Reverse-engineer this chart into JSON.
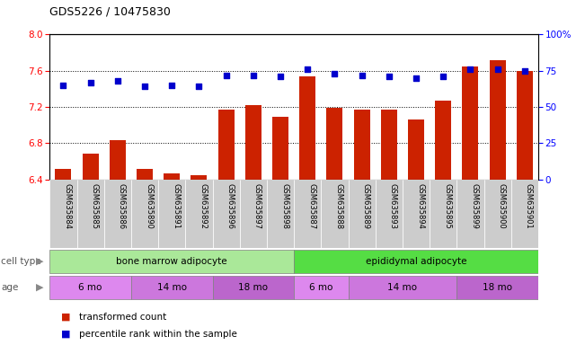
{
  "title": "GDS5226 / 10475830",
  "samples": [
    "GSM635884",
    "GSM635885",
    "GSM635886",
    "GSM635890",
    "GSM635891",
    "GSM635892",
    "GSM635896",
    "GSM635897",
    "GSM635898",
    "GSM635887",
    "GSM635888",
    "GSM635889",
    "GSM635893",
    "GSM635894",
    "GSM635895",
    "GSM635899",
    "GSM635900",
    "GSM635901"
  ],
  "bar_values": [
    6.52,
    6.68,
    6.83,
    6.52,
    6.47,
    6.45,
    7.17,
    7.22,
    7.09,
    7.54,
    7.19,
    7.17,
    7.17,
    7.06,
    7.27,
    7.65,
    7.72,
    7.6
  ],
  "dot_values": [
    65,
    67,
    68,
    64,
    65,
    64,
    72,
    72,
    71,
    76,
    73,
    72,
    71,
    70,
    71,
    76,
    76,
    75
  ],
  "ylim_left": [
    6.4,
    8.0
  ],
  "ylim_right": [
    0,
    100
  ],
  "yticks_left": [
    6.4,
    6.8,
    7.2,
    7.6,
    8.0
  ],
  "yticks_right": [
    0,
    25,
    50,
    75,
    100
  ],
  "bar_color": "#cc2200",
  "dot_color": "#0000cc",
  "cell_type_groups": [
    {
      "label": "bone marrow adipocyte",
      "start": 0,
      "end": 9,
      "color": "#aae899"
    },
    {
      "label": "epididymal adipocyte",
      "start": 9,
      "end": 18,
      "color": "#55dd44"
    }
  ],
  "age_groups": [
    {
      "label": "6 mo",
      "start": 0,
      "end": 3,
      "color": "#dd88ee"
    },
    {
      "label": "14 mo",
      "start": 3,
      "end": 6,
      "color": "#cc77dd"
    },
    {
      "label": "18 mo",
      "start": 6,
      "end": 9,
      "color": "#bb66cc"
    },
    {
      "label": "6 mo",
      "start": 9,
      "end": 11,
      "color": "#dd88ee"
    },
    {
      "label": "14 mo",
      "start": 11,
      "end": 15,
      "color": "#cc77dd"
    },
    {
      "label": "18 mo",
      "start": 15,
      "end": 18,
      "color": "#bb66cc"
    }
  ],
  "legend_items": [
    {
      "label": "transformed count",
      "color": "#cc2200"
    },
    {
      "label": "percentile rank within the sample",
      "color": "#0000cc"
    }
  ],
  "grid_lines": [
    6.8,
    7.2,
    7.6
  ],
  "cell_type_label": "cell type",
  "age_label": "age",
  "tick_bg_color": "#cccccc"
}
